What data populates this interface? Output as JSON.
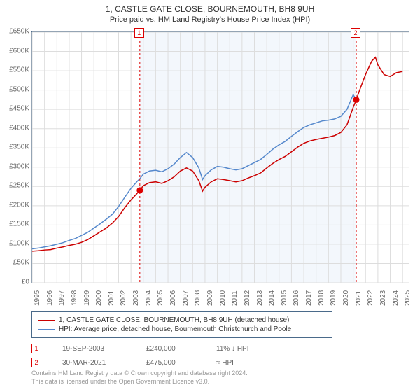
{
  "title": "1, CASTLE GATE CLOSE, BOURNEMOUTH, BH8 9UH",
  "subtitle": "Price paid vs. HM Land Registry's House Price Index (HPI)",
  "chart": {
    "type": "line",
    "x_years": [
      1995,
      1996,
      1997,
      1998,
      1999,
      2000,
      2001,
      2002,
      2003,
      2004,
      2005,
      2006,
      2007,
      2008,
      2009,
      2010,
      2011,
      2012,
      2013,
      2014,
      2015,
      2016,
      2017,
      2018,
      2019,
      2020,
      2021,
      2022,
      2023,
      2024,
      2025
    ],
    "xlim": [
      1995,
      2025.5
    ],
    "ylim": [
      0,
      650000
    ],
    "ytick_step": 50000,
    "yticks": [
      "£0",
      "£50K",
      "£100K",
      "£150K",
      "£200K",
      "£250K",
      "£300K",
      "£350K",
      "£400K",
      "£450K",
      "£500K",
      "£550K",
      "£600K",
      "£650K"
    ],
    "background_color": "#ffffff",
    "grid_color": "#dddddd",
    "border_color": "#4a6a8a",
    "shade_color": "#e8f0fa",
    "shade_range": [
      2003.72,
      2021.25
    ],
    "series": [
      {
        "name": "property",
        "label": "1, CASTLE GATE CLOSE, BOURNEMOUTH, BH8 9UH (detached house)",
        "color": "#cc0000",
        "width": 1.5,
        "data": [
          [
            1995,
            82000
          ],
          [
            1995.5,
            83000
          ],
          [
            1996,
            85000
          ],
          [
            1996.5,
            86000
          ],
          [
            1997,
            90000
          ],
          [
            1997.5,
            93000
          ],
          [
            1998,
            97000
          ],
          [
            1998.5,
            100000
          ],
          [
            1999,
            105000
          ],
          [
            1999.5,
            112000
          ],
          [
            2000,
            122000
          ],
          [
            2000.5,
            132000
          ],
          [
            2001,
            142000
          ],
          [
            2001.5,
            155000
          ],
          [
            2002,
            172000
          ],
          [
            2002.5,
            195000
          ],
          [
            2003,
            215000
          ],
          [
            2003.5,
            232000
          ],
          [
            2003.72,
            240000
          ],
          [
            2004,
            252000
          ],
          [
            2004.5,
            260000
          ],
          [
            2005,
            262000
          ],
          [
            2005.5,
            258000
          ],
          [
            2006,
            265000
          ],
          [
            2006.5,
            275000
          ],
          [
            2007,
            290000
          ],
          [
            2007.5,
            298000
          ],
          [
            2008,
            290000
          ],
          [
            2008.5,
            265000
          ],
          [
            2008.8,
            238000
          ],
          [
            2009,
            248000
          ],
          [
            2009.5,
            262000
          ],
          [
            2010,
            270000
          ],
          [
            2010.5,
            268000
          ],
          [
            2011,
            265000
          ],
          [
            2011.5,
            262000
          ],
          [
            2012,
            265000
          ],
          [
            2012.5,
            272000
          ],
          [
            2013,
            278000
          ],
          [
            2013.5,
            285000
          ],
          [
            2014,
            298000
          ],
          [
            2014.5,
            310000
          ],
          [
            2015,
            320000
          ],
          [
            2015.5,
            328000
          ],
          [
            2016,
            340000
          ],
          [
            2016.5,
            352000
          ],
          [
            2017,
            362000
          ],
          [
            2017.5,
            368000
          ],
          [
            2018,
            372000
          ],
          [
            2018.5,
            375000
          ],
          [
            2019,
            378000
          ],
          [
            2019.5,
            382000
          ],
          [
            2020,
            390000
          ],
          [
            2020.5,
            410000
          ],
          [
            2021,
            455000
          ],
          [
            2021.25,
            475000
          ],
          [
            2021.5,
            498000
          ],
          [
            2022,
            540000
          ],
          [
            2022.5,
            575000
          ],
          [
            2022.8,
            585000
          ],
          [
            2023,
            565000
          ],
          [
            2023.5,
            540000
          ],
          [
            2024,
            535000
          ],
          [
            2024.5,
            545000
          ],
          [
            2025,
            548000
          ]
        ]
      },
      {
        "name": "hpi",
        "label": "HPI: Average price, detached house, Bournemouth Christchurch and Poole",
        "color": "#5588cc",
        "width": 1.5,
        "data": [
          [
            1995,
            88000
          ],
          [
            1995.5,
            90000
          ],
          [
            1996,
            93000
          ],
          [
            1996.5,
            96000
          ],
          [
            1997,
            100000
          ],
          [
            1997.5,
            104000
          ],
          [
            1998,
            110000
          ],
          [
            1998.5,
            115000
          ],
          [
            1999,
            123000
          ],
          [
            1999.5,
            131000
          ],
          [
            2000,
            142000
          ],
          [
            2000.5,
            153000
          ],
          [
            2001,
            165000
          ],
          [
            2001.5,
            178000
          ],
          [
            2002,
            198000
          ],
          [
            2002.5,
            222000
          ],
          [
            2003,
            245000
          ],
          [
            2003.5,
            263000
          ],
          [
            2003.72,
            270000
          ],
          [
            2004,
            282000
          ],
          [
            2004.5,
            290000
          ],
          [
            2005,
            292000
          ],
          [
            2005.5,
            288000
          ],
          [
            2006,
            296000
          ],
          [
            2006.5,
            308000
          ],
          [
            2007,
            325000
          ],
          [
            2007.5,
            338000
          ],
          [
            2008,
            325000
          ],
          [
            2008.5,
            298000
          ],
          [
            2008.8,
            268000
          ],
          [
            2009,
            278000
          ],
          [
            2009.5,
            293000
          ],
          [
            2010,
            302000
          ],
          [
            2010.5,
            300000
          ],
          [
            2011,
            296000
          ],
          [
            2011.5,
            293000
          ],
          [
            2012,
            296000
          ],
          [
            2012.5,
            304000
          ],
          [
            2013,
            312000
          ],
          [
            2013.5,
            320000
          ],
          [
            2014,
            333000
          ],
          [
            2014.5,
            347000
          ],
          [
            2015,
            358000
          ],
          [
            2015.5,
            367000
          ],
          [
            2016,
            380000
          ],
          [
            2016.5,
            392000
          ],
          [
            2017,
            403000
          ],
          [
            2017.5,
            410000
          ],
          [
            2018,
            415000
          ],
          [
            2018.5,
            420000
          ],
          [
            2019,
            422000
          ],
          [
            2019.5,
            425000
          ],
          [
            2020,
            432000
          ],
          [
            2020.5,
            450000
          ],
          [
            2021,
            488000
          ],
          [
            2021.25,
            475000
          ]
        ]
      }
    ],
    "markers": [
      {
        "id": "1",
        "x": 2003.72,
        "y": 240000
      },
      {
        "id": "2",
        "x": 2021.25,
        "y": 475000
      }
    ]
  },
  "legend_title_fontsize": 10,
  "transactions": [
    {
      "id": "1",
      "date": "19-SEP-2003",
      "price": "£240,000",
      "pct": "11% ↓ HPI"
    },
    {
      "id": "2",
      "date": "30-MAR-2021",
      "price": "£475,000",
      "pct": "≈ HPI"
    }
  ],
  "footer": {
    "line1": "Contains HM Land Registry data © Crown copyright and database right 2024.",
    "line2": "This data is licensed under the Open Government Licence v3.0."
  }
}
